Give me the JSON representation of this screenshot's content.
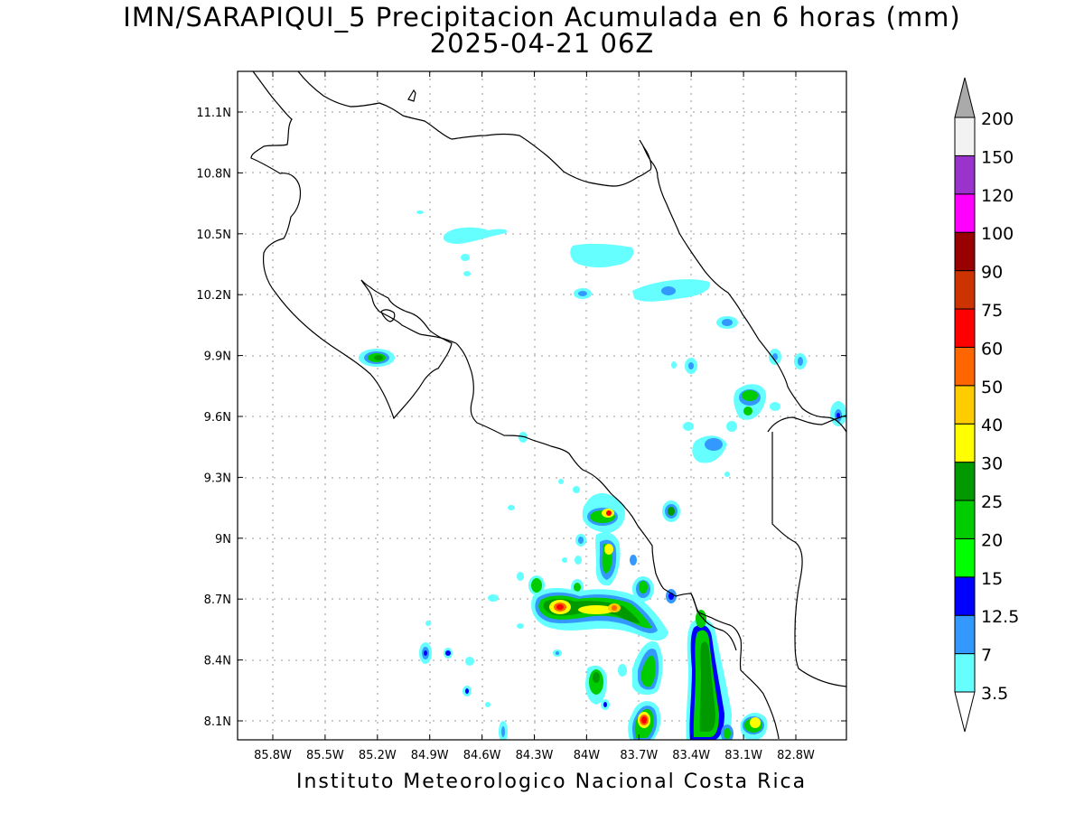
{
  "title": "IMN/SARAPIQUI_5 Precipitacion Acumulada en 6 horas (mm)",
  "subtitle": "2025-04-21 06Z",
  "footer": "Instituto Meteorologico Nacional Costa Rica",
  "lat_ticks": [
    "11.1N",
    "10.8N",
    "10.5N",
    "10.2N",
    "9.9N",
    "9.6N",
    "9.3N",
    "9N",
    "8.7N",
    "8.4N",
    "8.1N"
  ],
  "lon_ticks": [
    "85.8W",
    "85.5W",
    "85.2W",
    "84.9W",
    "84.6W",
    "84.3W",
    "84W",
    "83.7W",
    "83.4W",
    "83.1W",
    "82.8W"
  ],
  "legend": {
    "units": "mm",
    "levels": [
      "3.5",
      "7",
      "12.5",
      "15",
      "20",
      "25",
      "30",
      "40",
      "50",
      "60",
      "75",
      "90",
      "100",
      "120",
      "150",
      "200"
    ],
    "colors": [
      "#66ffff",
      "#3399ff",
      "#0000ff",
      "#00ff00",
      "#00cc00",
      "#009900",
      "#ffff00",
      "#ffcc00",
      "#ff6600",
      "#ff0000",
      "#cc3300",
      "#990000",
      "#ff00ff",
      "#9933cc",
      "#f2f2f2",
      "#aaaaaa"
    ]
  }
}
